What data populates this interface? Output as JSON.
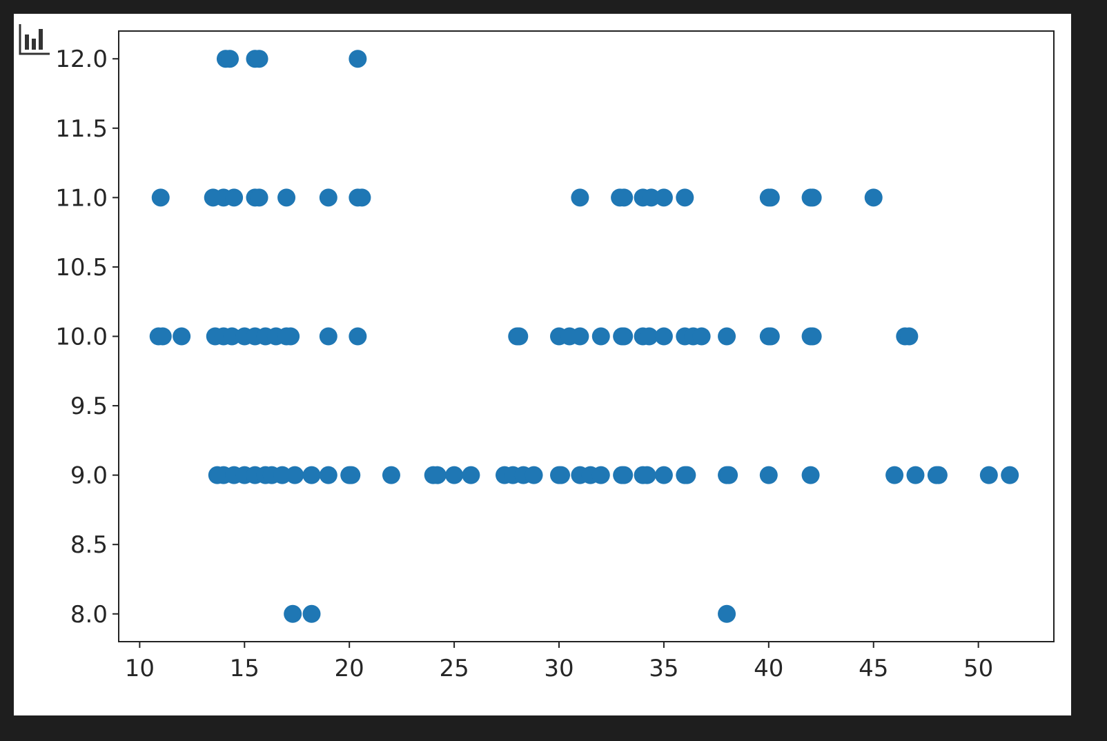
{
  "chart_data": {
    "type": "scatter",
    "title": "",
    "xlabel": "",
    "ylabel": "",
    "xlim": [
      9,
      53.6
    ],
    "ylim": [
      7.8,
      12.2
    ],
    "xticks": [
      "10",
      "15",
      "20",
      "25",
      "30",
      "35",
      "40",
      "45",
      "50"
    ],
    "yticks": [
      "8.0",
      "8.5",
      "9.0",
      "9.5",
      "10.0",
      "10.5",
      "11.0",
      "11.5",
      "12.0"
    ],
    "grid": false,
    "color": "#1f77b4",
    "points": [
      [
        14.1,
        12
      ],
      [
        14.3,
        12
      ],
      [
        15.5,
        12
      ],
      [
        15.7,
        12
      ],
      [
        20.4,
        12
      ],
      [
        11,
        11
      ],
      [
        13.5,
        11
      ],
      [
        14,
        11
      ],
      [
        14.5,
        11
      ],
      [
        15.5,
        11
      ],
      [
        15.7,
        11
      ],
      [
        17,
        11
      ],
      [
        19,
        11
      ],
      [
        20.4,
        11
      ],
      [
        20.6,
        11
      ],
      [
        31,
        11
      ],
      [
        32.9,
        11
      ],
      [
        33.1,
        11
      ],
      [
        34,
        11
      ],
      [
        34.4,
        11
      ],
      [
        35,
        11
      ],
      [
        36,
        11
      ],
      [
        40,
        11
      ],
      [
        40.1,
        11
      ],
      [
        42,
        11
      ],
      [
        42.1,
        11
      ],
      [
        45,
        11
      ],
      [
        10.9,
        10
      ],
      [
        11.1,
        10
      ],
      [
        12,
        10
      ],
      [
        13.6,
        10
      ],
      [
        14,
        10
      ],
      [
        14.4,
        10
      ],
      [
        15,
        10
      ],
      [
        15.5,
        10
      ],
      [
        16,
        10
      ],
      [
        16.5,
        10
      ],
      [
        17,
        10
      ],
      [
        17.2,
        10
      ],
      [
        19,
        10
      ],
      [
        20.4,
        10
      ],
      [
        28,
        10
      ],
      [
        28.1,
        10
      ],
      [
        30,
        10
      ],
      [
        30.5,
        10
      ],
      [
        31,
        10
      ],
      [
        32,
        10
      ],
      [
        33,
        10
      ],
      [
        33.1,
        10
      ],
      [
        34,
        10
      ],
      [
        34.3,
        10
      ],
      [
        35,
        10
      ],
      [
        36,
        10
      ],
      [
        36.4,
        10
      ],
      [
        36.8,
        10
      ],
      [
        38,
        10
      ],
      [
        40,
        10
      ],
      [
        40.1,
        10
      ],
      [
        42,
        10
      ],
      [
        42.1,
        10
      ],
      [
        46.5,
        10
      ],
      [
        46.7,
        10
      ],
      [
        13.7,
        9
      ],
      [
        14,
        9
      ],
      [
        14.5,
        9
      ],
      [
        15,
        9
      ],
      [
        15.5,
        9
      ],
      [
        16,
        9
      ],
      [
        16.3,
        9
      ],
      [
        16.8,
        9
      ],
      [
        17.4,
        9
      ],
      [
        18.2,
        9
      ],
      [
        19,
        9
      ],
      [
        20,
        9
      ],
      [
        20.1,
        9
      ],
      [
        22,
        9
      ],
      [
        24,
        9
      ],
      [
        24.2,
        9
      ],
      [
        25,
        9
      ],
      [
        25.8,
        9
      ],
      [
        27.4,
        9
      ],
      [
        27.8,
        9
      ],
      [
        28.3,
        9
      ],
      [
        28.8,
        9
      ],
      [
        30,
        9
      ],
      [
        30.1,
        9
      ],
      [
        31,
        9
      ],
      [
        31.5,
        9
      ],
      [
        32,
        9
      ],
      [
        33,
        9
      ],
      [
        33.1,
        9
      ],
      [
        34,
        9
      ],
      [
        34.2,
        9
      ],
      [
        35,
        9
      ],
      [
        36,
        9
      ],
      [
        36.1,
        9
      ],
      [
        38,
        9
      ],
      [
        38.1,
        9
      ],
      [
        40,
        9
      ],
      [
        42,
        9
      ],
      [
        46,
        9
      ],
      [
        47,
        9
      ],
      [
        48,
        9
      ],
      [
        48.1,
        9
      ],
      [
        50.5,
        9
      ],
      [
        51.5,
        9
      ],
      [
        17.3,
        8
      ],
      [
        18.2,
        8
      ],
      [
        38,
        8
      ]
    ]
  },
  "toolbar": {
    "icon": "bar-chart-icon"
  }
}
